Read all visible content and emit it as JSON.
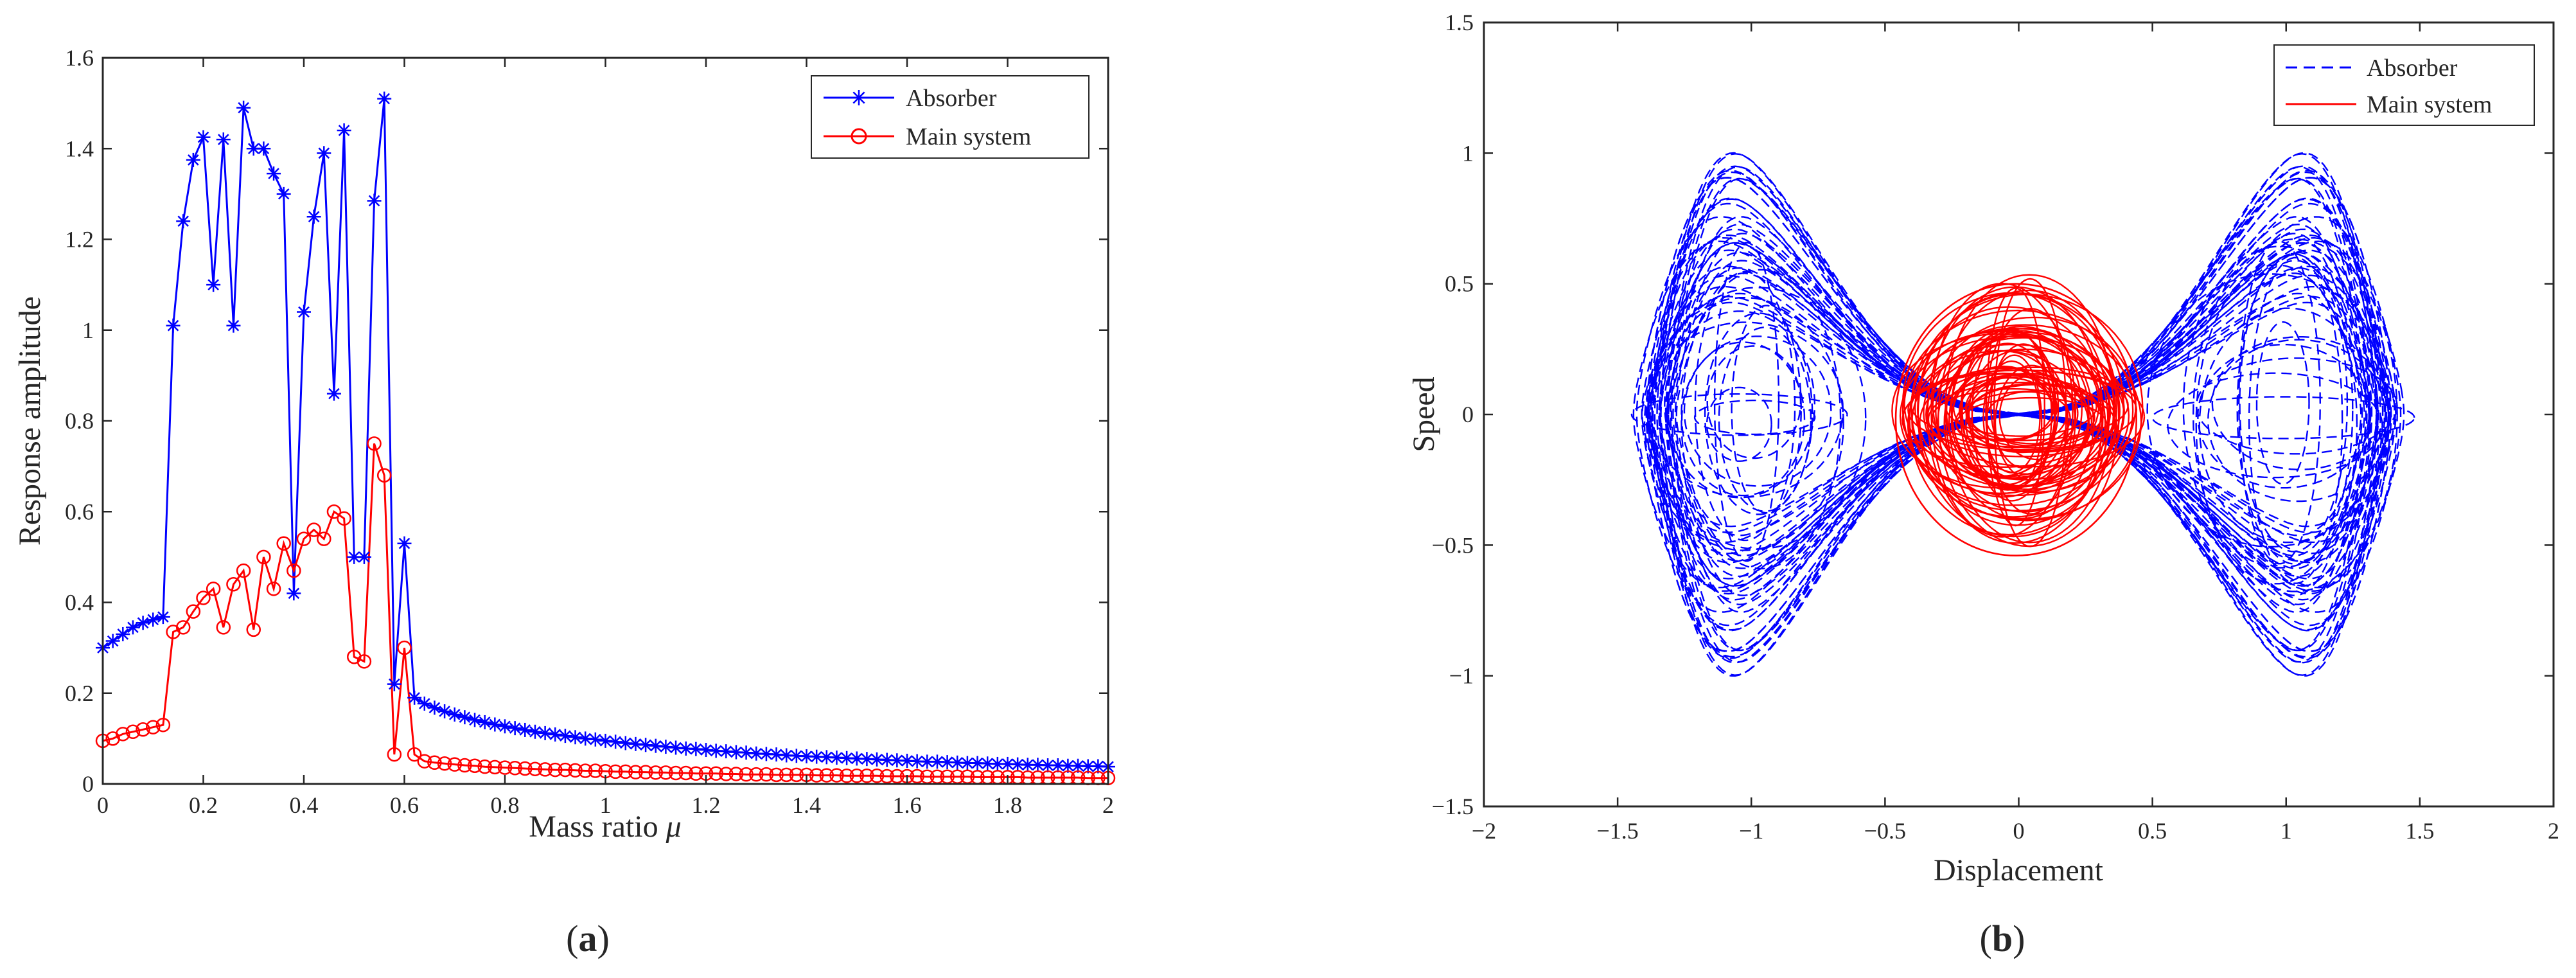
{
  "panels": [
    {
      "label_open": "(",
      "label_letter": "a",
      "label_close": ")"
    },
    {
      "label_open": "(",
      "label_letter": "b",
      "label_close": ")"
    }
  ],
  "chart_data": [
    {
      "type": "line",
      "title": "",
      "xlabel": "Mass ratio",
      "xlabel_symbol": "μ",
      "ylabel": "Response amplitude",
      "xlim": [
        0,
        2
      ],
      "ylim": [
        0,
        1.6
      ],
      "xticks": [
        "0",
        "0.2",
        "0.4",
        "0.6",
        "0.8",
        "1",
        "1.2",
        "1.4",
        "1.6",
        "1.8",
        "2"
      ],
      "yticks": [
        "0",
        "0.2",
        "0.4",
        "0.6",
        "0.8",
        "1",
        "1.2",
        "1.4",
        "1.6"
      ],
      "grid": false,
      "legend_position": "top-right",
      "series": [
        {
          "name": "Absorber",
          "color": "#0000ff",
          "marker": "asterisk",
          "x": [
            0,
            0.02,
            0.04,
            0.06,
            0.08,
            0.1,
            0.12,
            0.14,
            0.16,
            0.18,
            0.2,
            0.22,
            0.24,
            0.26,
            0.28,
            0.3,
            0.32,
            0.34,
            0.36,
            0.38,
            0.4,
            0.42,
            0.44,
            0.46,
            0.48,
            0.5,
            0.52,
            0.54,
            0.56,
            0.58,
            0.6,
            0.62,
            0.64,
            0.66,
            0.68,
            0.7,
            0.72,
            0.74,
            0.76,
            0.78,
            0.8,
            0.82,
            0.84,
            0.86,
            0.88,
            0.9,
            0.92,
            0.94,
            0.96,
            0.98,
            1,
            1.02,
            1.04,
            1.06,
            1.08,
            1.1,
            1.12,
            1.14,
            1.16,
            1.18,
            1.2,
            1.22,
            1.24,
            1.26,
            1.28,
            1.3,
            1.32,
            1.34,
            1.36,
            1.38,
            1.4,
            1.42,
            1.44,
            1.46,
            1.48,
            1.5,
            1.52,
            1.54,
            1.56,
            1.58,
            1.6,
            1.62,
            1.64,
            1.66,
            1.68,
            1.7,
            1.72,
            1.74,
            1.76,
            1.78,
            1.8,
            1.82,
            1.84,
            1.86,
            1.88,
            1.9,
            1.92,
            1.94,
            1.96,
            1.98,
            2
          ],
          "y": [
            0.3,
            0.315,
            0.33,
            0.345,
            0.355,
            0.362,
            0.368,
            1.01,
            1.24,
            1.375,
            1.425,
            1.1,
            1.42,
            1.01,
            1.49,
            1.4,
            1.4,
            1.345,
            1.3,
            0.42,
            1.04,
            1.25,
            1.39,
            0.86,
            1.44,
            0.5,
            0.5,
            1.285,
            1.51,
            0.22,
            0.53,
            0.19,
            0.177,
            0.168,
            0.16,
            0.153,
            0.147,
            0.141,
            0.136,
            0.131,
            0.127,
            0.123,
            0.119,
            0.115,
            0.112,
            0.109,
            0.106,
            0.103,
            0.1,
            0.098,
            0.095,
            0.093,
            0.09,
            0.088,
            0.086,
            0.084,
            0.082,
            0.08,
            0.078,
            0.077,
            0.075,
            0.073,
            0.072,
            0.07,
            0.069,
            0.067,
            0.066,
            0.065,
            0.063,
            0.062,
            0.061,
            0.06,
            0.059,
            0.058,
            0.057,
            0.056,
            0.055,
            0.054,
            0.053,
            0.052,
            0.051,
            0.05,
            0.049,
            0.049,
            0.048,
            0.047,
            0.046,
            0.046,
            0.045,
            0.044,
            0.044,
            0.043,
            0.042,
            0.042,
            0.041,
            0.041,
            0.04,
            0.04,
            0.039,
            0.039,
            0.038
          ]
        },
        {
          "name": "Main system",
          "color": "#ff0000",
          "marker": "circle",
          "x": [
            0,
            0.02,
            0.04,
            0.06,
            0.08,
            0.1,
            0.12,
            0.14,
            0.16,
            0.18,
            0.2,
            0.22,
            0.24,
            0.26,
            0.28,
            0.3,
            0.32,
            0.34,
            0.36,
            0.38,
            0.4,
            0.42,
            0.44,
            0.46,
            0.48,
            0.5,
            0.52,
            0.54,
            0.56,
            0.58,
            0.6,
            0.62,
            0.64,
            0.66,
            0.68,
            0.7,
            0.72,
            0.74,
            0.76,
            0.78,
            0.8,
            0.82,
            0.84,
            0.86,
            0.88,
            0.9,
            0.92,
            0.94,
            0.96,
            0.98,
            1,
            1.02,
            1.04,
            1.06,
            1.08,
            1.1,
            1.12,
            1.14,
            1.16,
            1.18,
            1.2,
            1.22,
            1.24,
            1.26,
            1.28,
            1.3,
            1.32,
            1.34,
            1.36,
            1.38,
            1.4,
            1.42,
            1.44,
            1.46,
            1.48,
            1.5,
            1.52,
            1.54,
            1.56,
            1.58,
            1.6,
            1.62,
            1.64,
            1.66,
            1.68,
            1.7,
            1.72,
            1.74,
            1.76,
            1.78,
            1.8,
            1.82,
            1.84,
            1.86,
            1.88,
            1.9,
            1.92,
            1.94,
            1.96,
            1.98,
            2
          ],
          "y": [
            0.095,
            0.1,
            0.11,
            0.115,
            0.12,
            0.125,
            0.13,
            0.335,
            0.345,
            0.38,
            0.41,
            0.43,
            0.345,
            0.44,
            0.47,
            0.34,
            0.5,
            0.43,
            0.53,
            0.47,
            0.54,
            0.56,
            0.54,
            0.6,
            0.585,
            0.28,
            0.27,
            0.75,
            0.68,
            0.065,
            0.3,
            0.065,
            0.05,
            0.047,
            0.045,
            0.043,
            0.041,
            0.04,
            0.038,
            0.037,
            0.036,
            0.035,
            0.034,
            0.033,
            0.032,
            0.031,
            0.031,
            0.03,
            0.029,
            0.029,
            0.028,
            0.027,
            0.027,
            0.026,
            0.026,
            0.025,
            0.025,
            0.024,
            0.024,
            0.023,
            0.023,
            0.023,
            0.022,
            0.022,
            0.021,
            0.021,
            0.021,
            0.02,
            0.02,
            0.02,
            0.02,
            0.019,
            0.019,
            0.019,
            0.018,
            0.018,
            0.018,
            0.018,
            0.017,
            0.017,
            0.017,
            0.017,
            0.016,
            0.016,
            0.016,
            0.016,
            0.016,
            0.015,
            0.015,
            0.015,
            0.015,
            0.015,
            0.014,
            0.014,
            0.014,
            0.014,
            0.014,
            0.014,
            0.013,
            0.013,
            0.013
          ]
        }
      ]
    },
    {
      "type": "line",
      "title": "",
      "xlabel": "Displacement",
      "ylabel": "Speed",
      "xlim": [
        -2,
        2
      ],
      "ylim": [
        -1.5,
        1.5
      ],
      "xticks": [
        "−2",
        "−1.5",
        "−1",
        "−0.5",
        "0",
        "0.5",
        "1",
        "1.5",
        "2"
      ],
      "yticks": [
        "−1.5",
        "−1",
        "−0.5",
        "0",
        "0.5",
        "1",
        "1.5"
      ],
      "grid": false,
      "legend_position": "top-right",
      "series": [
        {
          "name": "Absorber",
          "color": "#0000ff",
          "line_style": "dashed",
          "x_range": [
            -1.5,
            1.5
          ],
          "y_range": [
            -1.1,
            1.07
          ],
          "attractor_centers_x": [
            -1,
            1
          ]
        },
        {
          "name": "Main system",
          "color": "#ff0000",
          "line_style": "solid",
          "x_range": [
            -0.47,
            0.45
          ],
          "y_range": [
            -0.55,
            0.5
          ]
        }
      ]
    }
  ]
}
